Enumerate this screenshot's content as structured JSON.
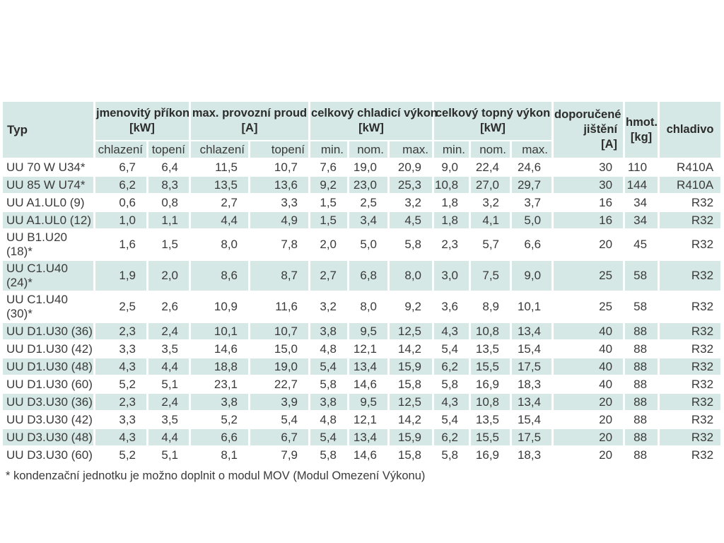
{
  "colors": {
    "cell_teal": "#d5e8e5",
    "text": "#3a3a3a"
  },
  "table": {
    "typ_header": "Typ",
    "groups": [
      {
        "label": "jmenovitý příkon",
        "unit": "[kW]",
        "sub": [
          "chlazení",
          "topení"
        ]
      },
      {
        "label": "max. provozní proud",
        "unit": "[A]",
        "sub": [
          "chlazení",
          "topení"
        ]
      },
      {
        "label": "celkový chladicí výkon",
        "unit": "[kW]",
        "sub": [
          "min.",
          "nom.",
          "max."
        ]
      },
      {
        "label": "celkový topný výkon",
        "unit": "[kW]",
        "sub": [
          "min.",
          "nom.",
          "max."
        ]
      }
    ],
    "fuse_header": {
      "label": "doporučené jištění",
      "unit": "[A]"
    },
    "weight_header": {
      "label": "hmot.",
      "unit": "[kg]"
    },
    "refrigerant_header": "chladivo",
    "rows": [
      [
        "UU 70 W U34*",
        "6,7",
        "6,4",
        "11,5",
        "10,7",
        "7,6",
        "19,0",
        "20,9",
        "9,0",
        "22,4",
        "24,6",
        "30",
        "110",
        "R410A"
      ],
      [
        "UU 85 W U74*",
        "6,2",
        "8,3",
        "13,5",
        "13,6",
        "9,2",
        "23,0",
        "25,3",
        "10,8",
        "27,0",
        "29,7",
        "30",
        "144",
        "R410A"
      ],
      [
        "UU A1.UL0 (9)",
        "0,6",
        "0,8",
        "2,7",
        "3,3",
        "1,5",
        "2,5",
        "3,2",
        "1,8",
        "3,2",
        "3,7",
        "16",
        "34",
        "R32"
      ],
      [
        "UU A1.UL0 (12)",
        "1,0",
        "1,1",
        "4,4",
        "4,9",
        "1,5",
        "3,4",
        "4,5",
        "1,8",
        "4,1",
        "5,0",
        "16",
        "34",
        "R32"
      ],
      [
        "UU B1.U20 (18)*",
        "1,6",
        "1,5",
        "8,0",
        "7,8",
        "2,0",
        "5,0",
        "5,8",
        "2,3",
        "5,7",
        "6,6",
        "20",
        "45",
        "R32"
      ],
      [
        "UU C1.U40 (24)*",
        "1,9",
        "2,0",
        "8,6",
        "8,7",
        "2,7",
        "6,8",
        "8,0",
        "3,0",
        "7,5",
        "9,0",
        "25",
        "58",
        "R32"
      ],
      [
        "UU C1.U40 (30)*",
        "2,5",
        "2,6",
        "10,9",
        "11,6",
        "3,2",
        "8,0",
        "9,2",
        "3,6",
        "8,9",
        "10,1",
        "25",
        "58",
        "R32"
      ],
      [
        "UU D1.U30 (36)",
        "2,3",
        "2,4",
        "10,1",
        "10,7",
        "3,8",
        "9,5",
        "12,5",
        "4,3",
        "10,8",
        "13,4",
        "40",
        "88",
        "R32"
      ],
      [
        "UU D1.U30 (42)",
        "3,3",
        "3,5",
        "14,6",
        "15,0",
        "4,8",
        "12,1",
        "14,2",
        "5,4",
        "13,5",
        "15,4",
        "40",
        "88",
        "R32"
      ],
      [
        "UU D1.U30 (48)",
        "4,3",
        "4,4",
        "18,8",
        "19,0",
        "5,4",
        "13,4",
        "15,9",
        "6,2",
        "15,5",
        "17,5",
        "40",
        "88",
        "R32"
      ],
      [
        "UU D1.U30 (60)",
        "5,2",
        "5,1",
        "23,1",
        "22,7",
        "5,8",
        "14,6",
        "15,8",
        "5,8",
        "16,9",
        "18,3",
        "40",
        "88",
        "R32"
      ],
      [
        "UU D3.U30 (36)",
        "2,3",
        "2,4",
        "3,8",
        "3,9",
        "3,8",
        "9,5",
        "12,5",
        "4,3",
        "10,8",
        "13,4",
        "20",
        "88",
        "R32"
      ],
      [
        "UU D3.U30 (42)",
        "3,3",
        "3,5",
        "5,2",
        "5,4",
        "4,8",
        "12,1",
        "14,2",
        "5,4",
        "13,5",
        "15,4",
        "20",
        "88",
        "R32"
      ],
      [
        "UU D3.U30 (48)",
        "4,3",
        "4,4",
        "6,6",
        "6,7",
        "5,4",
        "13,4",
        "15,9",
        "6,2",
        "15,5",
        "17,5",
        "20",
        "88",
        "R32"
      ],
      [
        "UU D3.U30 (60)",
        "5,2",
        "5,1",
        "8,1",
        "7,9",
        "5,8",
        "14,6",
        "15,8",
        "5,8",
        "16,9",
        "18,3",
        "20",
        "88",
        "R32"
      ]
    ]
  },
  "footnote": "* kondenzační jednotku je možno doplnit o modul MOV (Modul Omezení Výkonu)"
}
